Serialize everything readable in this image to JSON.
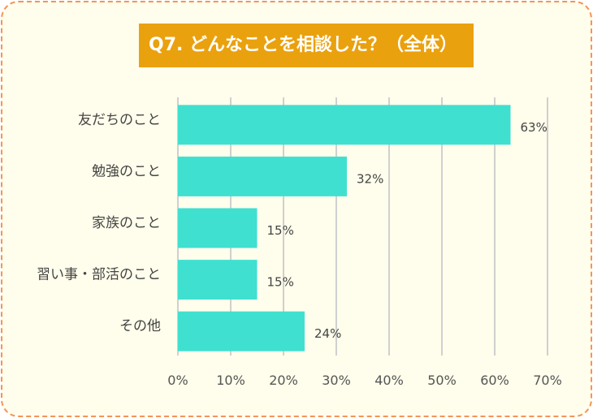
{
  "chart_data": {
    "type": "bar",
    "orientation": "horizontal",
    "title": "Q7. どんなことを相談した？（全体）",
    "categories": [
      "友だちのこと",
      "勉強のこと",
      "家族のこと",
      "習い事・部活のこと",
      "その他"
    ],
    "values": [
      63,
      32,
      15,
      15,
      24
    ],
    "data_labels": [
      "63%",
      "32%",
      "15%",
      "15%",
      "24%"
    ],
    "xlim": [
      0,
      70
    ],
    "xticks": [
      0,
      10,
      20,
      30,
      40,
      50,
      60,
      70
    ],
    "xtick_labels": [
      "0%",
      "10%",
      "20%",
      "30%",
      "40%",
      "50%",
      "60%",
      "70%"
    ],
    "grid": true,
    "bar_color": "#40E0D0",
    "title_bg": "#EAA10E"
  }
}
